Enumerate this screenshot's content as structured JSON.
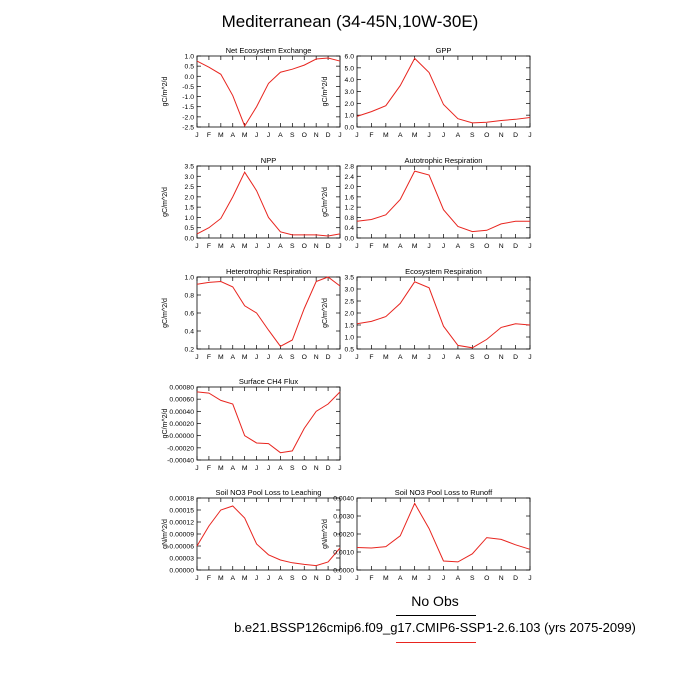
{
  "page": {
    "title": "Mediterranean (34-45N,10W-30E)",
    "obs_label": "No Obs",
    "case_label": "b.e21.BSSP126cmip6.f09_g17.CMIP6-SSP1-2.6.103 (yrs 2075-2099)"
  },
  "colors": {
    "line": "#e8251f",
    "axis": "#000000"
  },
  "chart_data": [
    {
      "type": "line",
      "title": "Net Ecosystem Exchange",
      "ylabel": "gC/m^2/d",
      "x": [
        "J",
        "F",
        "M",
        "A",
        "M",
        "J",
        "J",
        "A",
        "S",
        "O",
        "N",
        "D",
        "J"
      ],
      "ylim": [
        -2.5,
        1.0
      ],
      "yticks": [
        "1.0",
        "0.5",
        "0.0",
        "-0.5",
        "-1.0",
        "-1.5",
        "-2.0",
        "-2.5"
      ],
      "ytick_values": [
        1.0,
        0.5,
        0.0,
        -0.5,
        -1.0,
        -1.5,
        -2.0,
        -2.5
      ],
      "series": [
        {
          "values": [
            0.75,
            0.45,
            0.1,
            -0.95,
            -2.45,
            -1.5,
            -0.35,
            0.2,
            0.35,
            0.55,
            0.85,
            0.9,
            0.75
          ]
        }
      ]
    },
    {
      "type": "line",
      "title": "GPP",
      "ylabel": "gC/m^2/d",
      "x": [
        "J",
        "F",
        "M",
        "A",
        "M",
        "J",
        "J",
        "A",
        "S",
        "O",
        "N",
        "D",
        "J"
      ],
      "ylim": [
        0.0,
        6.0
      ],
      "yticks": [
        "6.0",
        "5.0",
        "4.0",
        "3.0",
        "2.0",
        "1.0",
        "0.0"
      ],
      "ytick_values": [
        6.0,
        5.0,
        4.0,
        3.0,
        2.0,
        1.0,
        0.0
      ],
      "series": [
        {
          "values": [
            0.9,
            1.3,
            1.8,
            3.5,
            5.8,
            4.6,
            1.9,
            0.7,
            0.35,
            0.4,
            0.55,
            0.65,
            0.8
          ]
        }
      ]
    },
    {
      "type": "line",
      "title": "NPP",
      "ylabel": "gC/m^2/d",
      "x": [
        "J",
        "F",
        "M",
        "A",
        "M",
        "J",
        "J",
        "A",
        "S",
        "O",
        "N",
        "D",
        "J"
      ],
      "ylim": [
        0.0,
        3.5
      ],
      "yticks": [
        "3.5",
        "3.0",
        "2.5",
        "2.0",
        "1.5",
        "1.0",
        "0.5",
        "0.0"
      ],
      "ytick_values": [
        3.5,
        3.0,
        2.5,
        2.0,
        1.5,
        1.0,
        0.5,
        0.0
      ],
      "series": [
        {
          "values": [
            0.2,
            0.5,
            0.95,
            2.0,
            3.2,
            2.3,
            1.0,
            0.3,
            0.15,
            0.15,
            0.15,
            0.1,
            0.2
          ]
        }
      ]
    },
    {
      "type": "line",
      "title": "Autotrophic Respiration",
      "ylabel": "gC/m^2/d",
      "x": [
        "J",
        "F",
        "M",
        "A",
        "M",
        "J",
        "J",
        "A",
        "S",
        "O",
        "N",
        "D",
        "J"
      ],
      "ylim": [
        0.0,
        2.8
      ],
      "yticks": [
        "2.8",
        "2.4",
        "2.0",
        "1.6",
        "1.2",
        "0.8",
        "0.4",
        "0.0"
      ],
      "ytick_values": [
        2.8,
        2.4,
        2.0,
        1.6,
        1.2,
        0.8,
        0.4,
        0.0
      ],
      "series": [
        {
          "values": [
            0.65,
            0.72,
            0.9,
            1.5,
            2.6,
            2.45,
            1.1,
            0.45,
            0.25,
            0.3,
            0.55,
            0.65,
            0.65
          ]
        }
      ]
    },
    {
      "type": "line",
      "title": "Heterotrophic Respiration",
      "ylabel": "gC/m^2/d",
      "x": [
        "J",
        "F",
        "M",
        "A",
        "M",
        "J",
        "J",
        "A",
        "S",
        "O",
        "N",
        "D",
        "J"
      ],
      "ylim": [
        0.2,
        1.0
      ],
      "yticks": [
        "1.0",
        "0.8",
        "0.6",
        "0.4",
        "0.2"
      ],
      "ytick_values": [
        1.0,
        0.8,
        0.6,
        0.4,
        0.2
      ],
      "series": [
        {
          "values": [
            0.92,
            0.94,
            0.95,
            0.89,
            0.68,
            0.6,
            0.41,
            0.23,
            0.3,
            0.65,
            0.95,
            1.0,
            0.9
          ]
        }
      ]
    },
    {
      "type": "line",
      "title": "Ecosystem Respiration",
      "ylabel": "gC/m^2/d",
      "x": [
        "J",
        "F",
        "M",
        "A",
        "M",
        "J",
        "J",
        "A",
        "S",
        "O",
        "N",
        "D",
        "J"
      ],
      "ylim": [
        0.5,
        3.5
      ],
      "yticks": [
        "3.5",
        "3.0",
        "2.5",
        "2.0",
        "1.5",
        "1.0",
        "0.5"
      ],
      "ytick_values": [
        3.5,
        3.0,
        2.5,
        2.0,
        1.5,
        1.0,
        0.5
      ],
      "series": [
        {
          "values": [
            1.55,
            1.65,
            1.85,
            2.4,
            3.3,
            3.05,
            1.45,
            0.65,
            0.55,
            0.9,
            1.4,
            1.55,
            1.5
          ]
        }
      ]
    },
    {
      "type": "line",
      "title": "Surface CH4 Flux",
      "ylabel": "gC/m^2/d",
      "x": [
        "J",
        "F",
        "M",
        "A",
        "M",
        "J",
        "J",
        "A",
        "S",
        "O",
        "N",
        "D",
        "J"
      ],
      "ylim": [
        -0.0004,
        0.0008
      ],
      "yticks": [
        "0.00080",
        "0.00060",
        "0.00040",
        "0.00020",
        "0.00000",
        "-0.00020",
        "-0.00040"
      ],
      "ytick_values": [
        0.0008,
        0.0006,
        0.0004,
        0.0002,
        0.0,
        -0.0002,
        -0.0004
      ],
      "series": [
        {
          "values": [
            0.00072,
            0.0007,
            0.00058,
            0.00052,
            0.0,
            -0.00012,
            -0.00013,
            -0.00028,
            -0.00025,
            0.00012,
            0.0004,
            0.00052,
            0.00072
          ]
        }
      ]
    },
    {
      "type": "line",
      "title": "Soil NO3 Pool Loss to Leaching",
      "ylabel": "gN/m^2/d",
      "x": [
        "J",
        "F",
        "M",
        "A",
        "M",
        "J",
        "J",
        "A",
        "S",
        "O",
        "N",
        "D",
        "J"
      ],
      "ylim": [
        0.0,
        0.00018
      ],
      "yticks": [
        "0.00018",
        "0.00015",
        "0.00012",
        "0.00009",
        "0.00006",
        "0.00003",
        "0.00000"
      ],
      "ytick_values": [
        0.00018,
        0.00015,
        0.00012,
        9e-05,
        6e-05,
        3e-05,
        0.0
      ],
      "series": [
        {
          "values": [
            6e-05,
            0.00011,
            0.00015,
            0.00016,
            0.00013,
            6.5e-05,
            3.8e-05,
            2.5e-05,
            1.8e-05,
            1.4e-05,
            1.1e-05,
            2e-05,
            5.5e-05
          ]
        }
      ]
    },
    {
      "type": "line",
      "title": "Soil NO3 Pool Loss to Runoff",
      "ylabel": "gN/m^2/d",
      "x": [
        "J",
        "F",
        "M",
        "A",
        "M",
        "J",
        "J",
        "A",
        "S",
        "O",
        "N",
        "D",
        "J"
      ],
      "ylim": [
        0.0,
        0.004
      ],
      "yticks": [
        "0.0040",
        "0.0030",
        "0.0020",
        "0.0010",
        "0.0000"
      ],
      "ytick_values": [
        0.004,
        0.003,
        0.002,
        0.001,
        0.0
      ],
      "series": [
        {
          "values": [
            0.00125,
            0.00122,
            0.0013,
            0.0019,
            0.0037,
            0.0023,
            0.0005,
            0.00045,
            0.0009,
            0.0018,
            0.0017,
            0.0014,
            0.00115
          ]
        }
      ]
    }
  ]
}
